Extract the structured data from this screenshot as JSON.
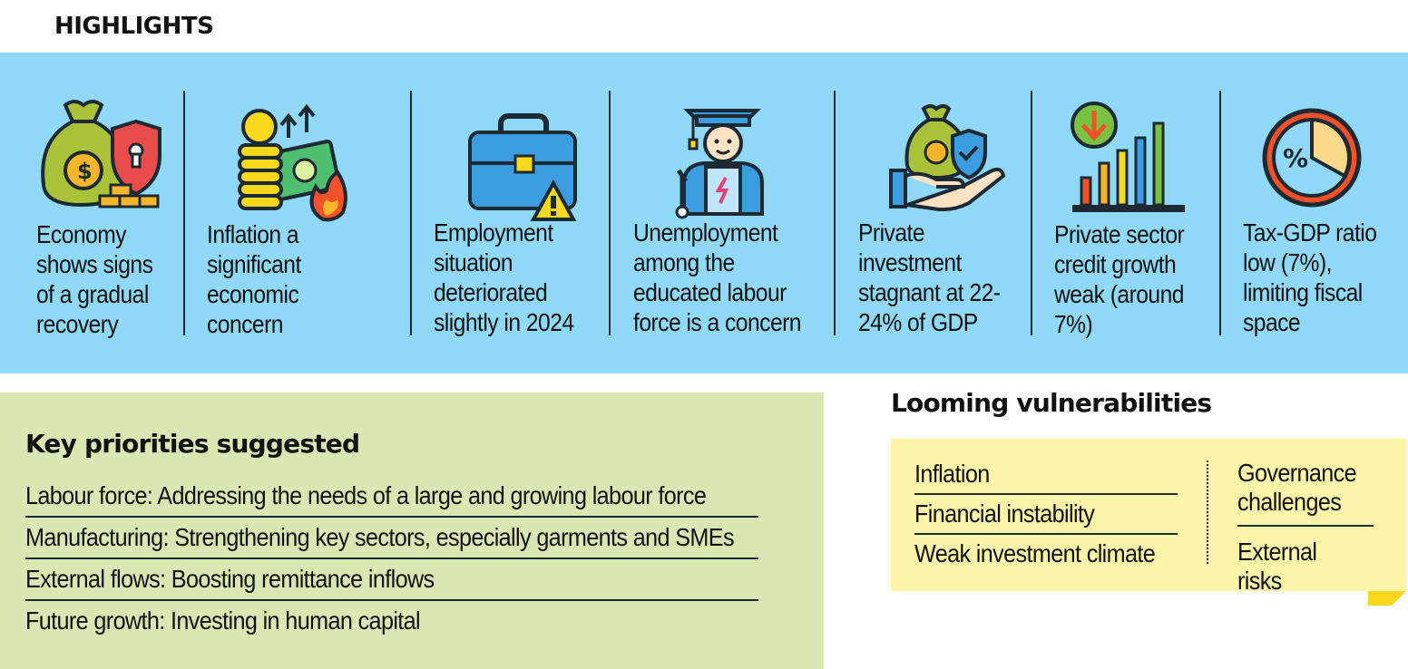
{
  "header": {
    "title": "HIGHLIGHTS"
  },
  "highlights": [
    {
      "text": "Economy shows signs of a gradual recovery",
      "icon": "money-bag-shield-icon"
    },
    {
      "text": "Inflation a significant economic concern",
      "icon": "coins-cash-fire-icon"
    },
    {
      "text": "Employment situation deteriorated slightly in 2024",
      "icon": "briefcase-warning-icon"
    },
    {
      "text": "Unemployment among the educated labour force is a concern",
      "icon": "graduate-worker-icon"
    },
    {
      "text": "Private investment stagnant at 22-24% of GDP",
      "icon": "hand-money-bag-icon"
    },
    {
      "text": "Private sector credit growth weak (around 7%)",
      "icon": "bar-chart-down-arrow-icon"
    },
    {
      "text": "Tax-GDP ratio low (7%), limiting fiscal space",
      "icon": "percent-pie-icon"
    }
  ],
  "priorities": {
    "title": "Key priorities suggested",
    "items": [
      "Labour force: Addressing the needs of a large and growing labour force",
      "Manufacturing: Strengthening key sectors, especially garments and SMEs",
      "External flows: Boosting remittance inflows",
      "Future growth: Investing in human capital"
    ]
  },
  "vulnerabilities": {
    "title": "Looming vulnerabilities",
    "left": [
      "Inflation",
      "Financial instability",
      "Weak investment climate"
    ],
    "right": [
      "Governance challenges",
      "External risks"
    ]
  },
  "colors": {
    "band": "#8fd8f6",
    "green_box": "#d9e7b2",
    "yellow_box": "#fcf4a8",
    "fold": "#f7d81c"
  }
}
